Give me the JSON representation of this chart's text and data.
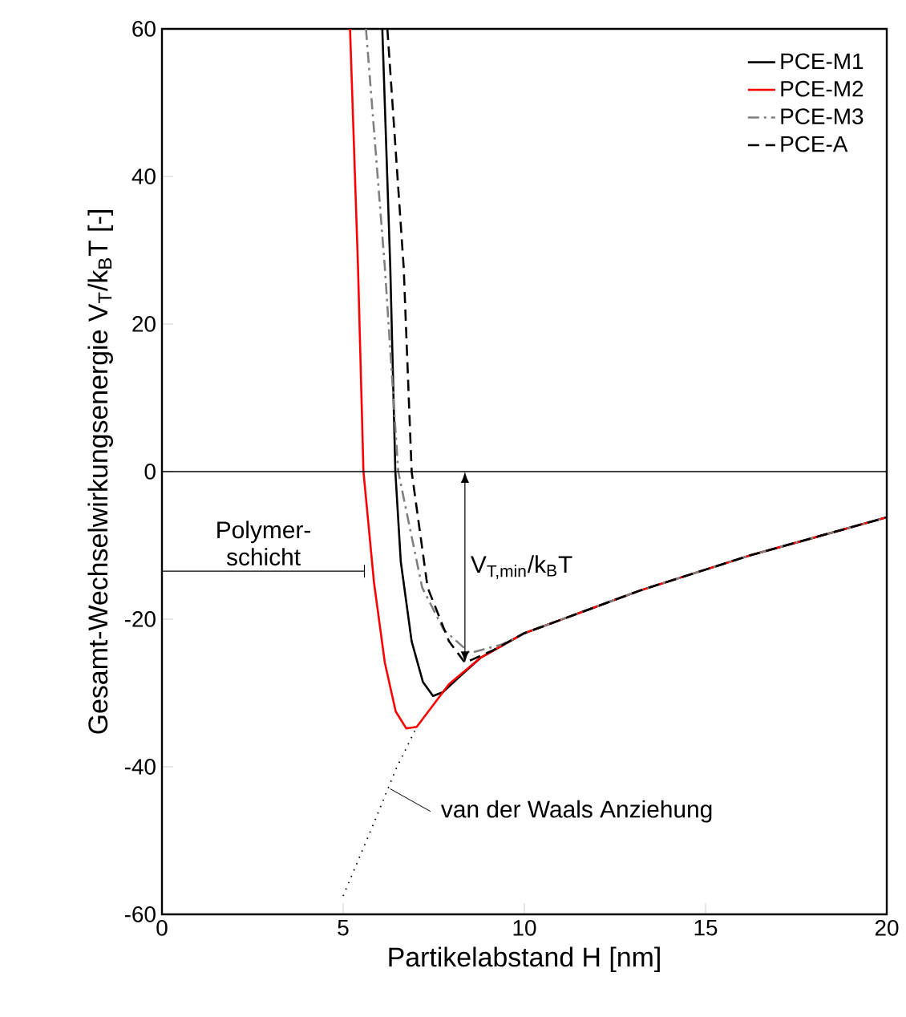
{
  "chart_data": {
    "type": "line",
    "xlabel": "Partikelabstand H [nm]",
    "ylabel": "Gesamt-Wechselwirkungsenergie V$_{T}$/k$_{B}$T [-]",
    "xlim": [
      0,
      20
    ],
    "xticks": [
      0,
      5,
      10,
      15,
      20
    ],
    "ylim": [
      -60,
      60
    ],
    "yticks": [
      -60,
      -40,
      -20,
      0,
      20,
      40,
      60
    ],
    "grid": false,
    "legend": "top right",
    "marker": "none",
    "ref_lines": [
      {
        "axis": "y",
        "value": 0,
        "color": "#000000"
      }
    ],
    "annotations": [
      {
        "text": "Polymer-schicht",
        "x": 5.6,
        "y": -13.5
      },
      "V$_{T,min}$/k$_{B}$T",
      {
        "text": "van der Waals Anziehung",
        "x": 6.3,
        "y": -43
      }
    ],
    "series": [
      {
        "name": "PCE-M1",
        "color": "#000000",
        "line_style": "solid",
        "x": [
          6.08,
          6.3,
          6.44,
          6.59,
          6.89,
          7.2,
          7.48,
          7.75,
          8.3,
          8.8,
          10.0,
          11.0,
          13.2,
          16.2,
          20.0
        ],
        "values": [
          60,
          27.7,
          0,
          -12.2,
          -23,
          -28.5,
          -30.4,
          -29.9,
          -27.4,
          -25.2,
          -21.9,
          -20.1,
          -16.1,
          -11.4,
          -6.2
        ]
      },
      {
        "name": "PCE-M2",
        "color": "#ff0000",
        "line_style": "solid",
        "x": [
          5.19,
          5.41,
          5.56,
          5.85,
          6.15,
          6.45,
          6.74,
          7.03,
          7.92,
          8.8,
          10.0,
          11.0,
          13.2,
          16.2,
          20.0
        ],
        "values": [
          60,
          27.7,
          0,
          -15,
          -25.9,
          -32.5,
          -34.8,
          -34.6,
          -28.8,
          -25.2,
          -21.9,
          -20.1,
          -16.1,
          -11.4,
          -6.2
        ]
      },
      {
        "name": "PCE-M3",
        "color": "#808080",
        "line_style": "dashdot",
        "x": [
          5.63,
          6.15,
          6.52,
          7.18,
          7.77,
          8.5,
          9.4,
          10.0,
          11.0,
          13.2,
          16.2,
          20.0
        ],
        "values": [
          60,
          27.7,
          0,
          -15.7,
          -21.4,
          -24.6,
          -23.4,
          -21.9,
          -20.1,
          -16.1,
          -11.4,
          -6.2
        ]
      },
      {
        "name": "PCE-A",
        "color": "#000000",
        "line_style": "dashed",
        "x": [
          6.22,
          6.67,
          6.89,
          7.33,
          7.92,
          8.36,
          9.1,
          10.0,
          11.0,
          13.2,
          16.2,
          20.0
        ],
        "values": [
          60,
          27.7,
          0,
          -15.7,
          -23,
          -25.9,
          -24.3,
          -21.9,
          -20.1,
          -16.1,
          -11.4,
          -6.2
        ]
      },
      {
        "color": "#000000",
        "line_style": "dotted",
        "x": [
          5.0,
          5.85,
          6.45,
          7.03
        ],
        "values": [
          -57.5,
          -47.6,
          -40.4,
          -34.6
        ]
      }
    ]
  }
}
